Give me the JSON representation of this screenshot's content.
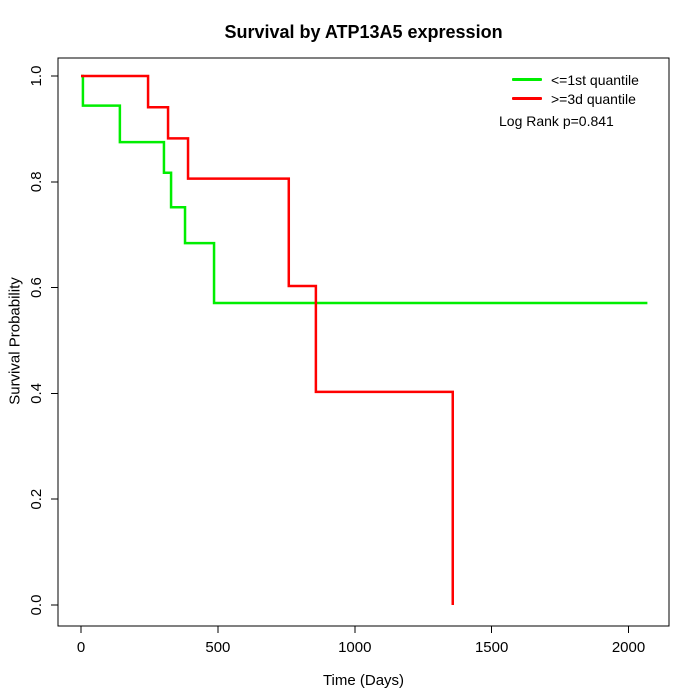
{
  "title": "Survival by ATP13A5 expression",
  "x_axis": {
    "label": "Time (Days)",
    "tick_labels": [
      "0",
      "500",
      "1000",
      "1500",
      "2000"
    ],
    "tick_values": [
      0,
      500,
      1000,
      1500,
      2000
    ]
  },
  "y_axis": {
    "label": "Survival Probability",
    "tick_labels": [
      "0.0",
      "0.2",
      "0.4",
      "0.6",
      "0.8",
      "1.0"
    ],
    "tick_values": [
      0,
      0.2,
      0.4,
      0.6,
      0.8,
      1.0
    ]
  },
  "legend": {
    "items": [
      {
        "label": "<=1st quantile",
        "color": "#00ee00"
      },
      {
        "label": ">=3d quantile",
        "color": "#ff0000"
      }
    ],
    "note": "Log Rank p=0.841"
  },
  "chart_data": {
    "type": "line",
    "subtype": "kaplan-meier-step-curves",
    "title": "Survival by ATP13A5 expression",
    "xlabel": "Time (Days)",
    "ylabel": "Survival Probability",
    "xlim": [
      0,
      2100
    ],
    "ylim": [
      0.0,
      1.0
    ],
    "grid": false,
    "legend_position": "top-right",
    "annotation": "Log Rank p=0.841",
    "series": [
      {
        "name": "<=1st quantile",
        "color": "#00ee00",
        "start": [
          0,
          1.0
        ],
        "steps": [
          [
            7,
            0.944
          ],
          [
            142,
            0.875
          ],
          [
            303,
            0.817
          ],
          [
            329,
            0.752
          ],
          [
            380,
            0.684
          ],
          [
            486,
            0.571
          ]
        ],
        "end_time": 2069
      },
      {
        "name": ">=3d quantile",
        "color": "#ff0000",
        "start": [
          0,
          1.0
        ],
        "steps": [
          [
            245,
            0.941
          ],
          [
            318,
            0.882
          ],
          [
            391,
            0.806
          ],
          [
            759,
            0.603
          ],
          [
            858,
            0.403
          ],
          [
            1358,
            0.0
          ]
        ],
        "end_time": 1358
      }
    ]
  }
}
